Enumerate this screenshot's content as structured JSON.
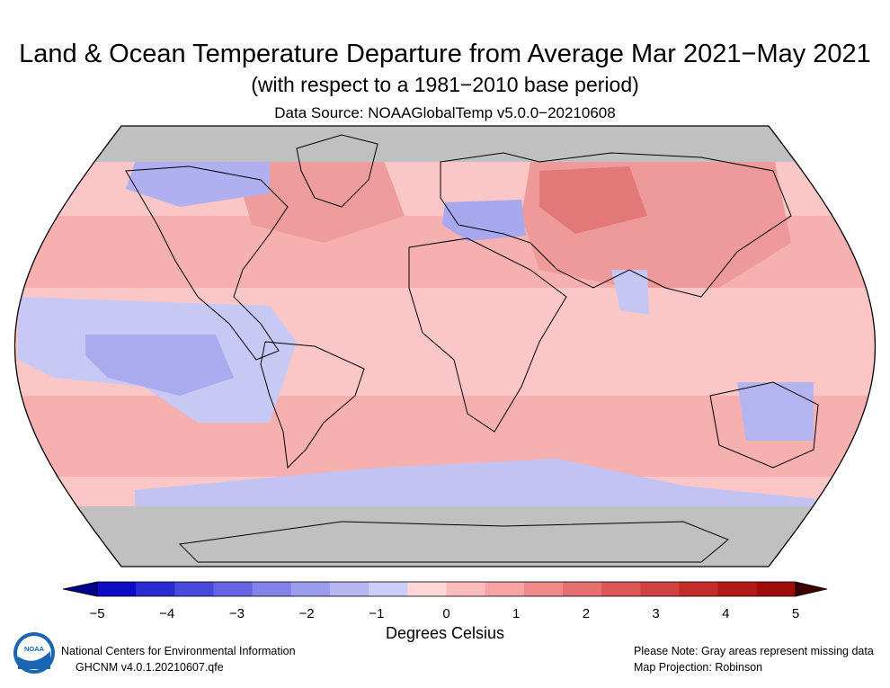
{
  "header": {
    "title": "Land & Ocean Temperature Departure from Average Mar 2021−May 2021",
    "subtitle": "(with respect to a 1981−2010 base period)",
    "source": "Data Source: NOAAGlobalTemp v5.0.0−20210608"
  },
  "colorbar": {
    "title": "Degrees Celsius",
    "min": -5,
    "max": 5,
    "ticks": [
      "−5",
      "−4",
      "−3",
      "−2",
      "−1",
      "0",
      "1",
      "2",
      "3",
      "4",
      "5"
    ],
    "colors": [
      "#00008b",
      "#0c0cc4",
      "#2a2ad2",
      "#4848dc",
      "#6464e4",
      "#8282ea",
      "#9c9cee",
      "#b6b6f3",
      "#cdcdf7",
      "#ffd7d7",
      "#fcbcbc",
      "#f8a3a3",
      "#f08a8a",
      "#e67070",
      "#dc5858",
      "#d04242",
      "#c42c2c",
      "#b41818",
      "#a00c0c",
      "#3c0000"
    ],
    "missing_color": "#c0c0c0"
  },
  "footer": {
    "org": "National Centers for Environmental Information",
    "dataset": "GHCNM v4.0.1.20210607.qfe",
    "note": "Please Note: Gray areas represent missing data",
    "projection": "Map Projection: Robinson"
  },
  "logo": {
    "text": "NOAA",
    "icon": "noaa-logo-icon"
  }
}
